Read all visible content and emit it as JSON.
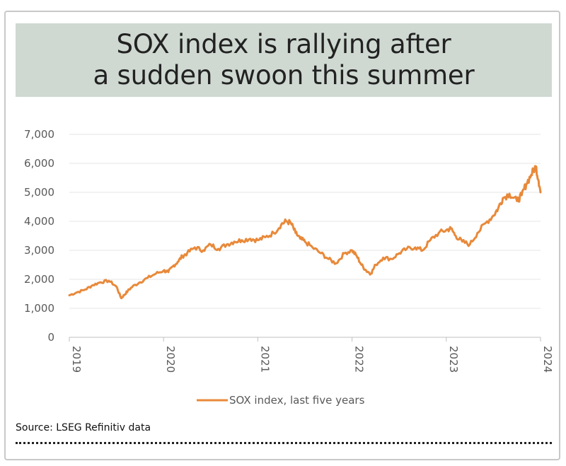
{
  "title": {
    "line1": "SOX index is rallying after",
    "line2": "a sudden swoon this summer"
  },
  "source": "Source: LSEG Refinitiv data",
  "colors": {
    "line": "#e8893a",
    "grid": "#e6e6e6",
    "title_bg": "#cfd9d2"
  },
  "chart_data": {
    "type": "line",
    "title": "SOX index is rallying after a sudden swoon this summer",
    "xlabel": "",
    "ylabel": "",
    "ylim": [
      0,
      7000
    ],
    "xlim": [
      2019,
      2024
    ],
    "y_ticks": [
      "0",
      "1,000",
      "2,000",
      "3,000",
      "4,000",
      "5,000",
      "6,000",
      "7,000"
    ],
    "x_ticks": [
      "2019",
      "2020",
      "2021",
      "2022",
      "2023",
      "2024"
    ],
    "grid": "horizontal",
    "legend": "bottom",
    "series": [
      {
        "name": "SOX index, last five years",
        "x": [
          2019.0,
          2019.08,
          2019.17,
          2019.25,
          2019.33,
          2019.42,
          2019.5,
          2019.55,
          2019.58,
          2019.62,
          2019.67,
          2019.75,
          2019.83,
          2019.92,
          2020.0,
          2020.05,
          2020.1,
          2020.15,
          2020.2,
          2020.25,
          2020.33,
          2020.42,
          2020.5,
          2020.58,
          2020.67,
          2020.75,
          2020.83,
          2020.92,
          2021.0,
          2021.08,
          2021.17,
          2021.25,
          2021.3,
          2021.35,
          2021.4,
          2021.45,
          2021.5,
          2021.58,
          2021.67,
          2021.75,
          2021.83,
          2021.92,
          2022.0,
          2022.05,
          2022.1,
          2022.15,
          2022.2,
          2022.25,
          2022.33,
          2022.42,
          2022.5,
          2022.58,
          2022.67,
          2022.75,
          2022.83,
          2022.92,
          2023.0,
          2023.05,
          2023.1,
          2023.17,
          2023.25,
          2023.33,
          2023.42,
          2023.5,
          2023.55,
          2023.6,
          2023.67,
          2023.75,
          2023.8,
          2023.85,
          2023.9,
          2023.95,
          2023.98,
          2024.0
        ],
        "values": [
          1450,
          1550,
          1650,
          1800,
          1900,
          1950,
          1750,
          1350,
          1450,
          1600,
          1750,
          1900,
          2050,
          2200,
          2300,
          2250,
          2450,
          2600,
          2800,
          2900,
          3100,
          3000,
          3200,
          3050,
          3200,
          3300,
          3350,
          3400,
          3350,
          3450,
          3600,
          3900,
          4000,
          3950,
          3600,
          3400,
          3300,
          3100,
          2900,
          2700,
          2550,
          2900,
          3000,
          2800,
          2500,
          2300,
          2200,
          2500,
          2750,
          2700,
          2900,
          3050,
          3100,
          3000,
          3350,
          3600,
          3700,
          3750,
          3500,
          3300,
          3200,
          3600,
          3950,
          4200,
          4450,
          4800,
          4950,
          4700,
          4900,
          5300,
          5600,
          5900,
          5400,
          5000
        ]
      }
    ]
  }
}
